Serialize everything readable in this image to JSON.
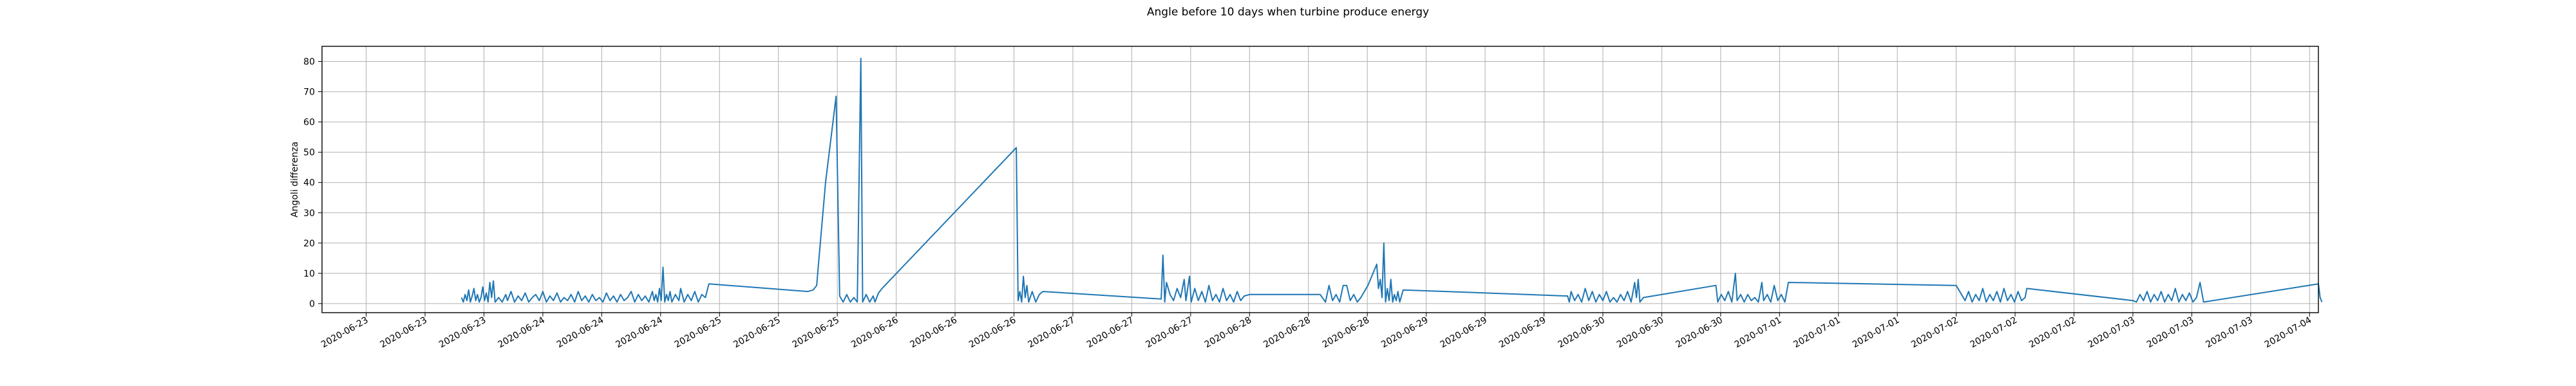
{
  "chart_data": {
    "type": "line",
    "title": "Angle before 10 days when turbine produce energy",
    "xlabel": "",
    "ylabel": "Angoli differenza",
    "ylim": [
      -3,
      85
    ],
    "y_ticks": [
      0,
      10,
      20,
      30,
      40,
      50,
      60,
      70,
      80
    ],
    "grid": true,
    "line_color": "#1f77b4",
    "x_tick_labels": [
      "2020-06-23",
      "2020-06-23",
      "2020-06-23",
      "2020-06-24",
      "2020-06-24",
      "2020-06-24",
      "2020-06-25",
      "2020-06-25",
      "2020-06-25",
      "2020-06-26",
      "2020-06-26",
      "2020-06-26",
      "2020-06-27",
      "2020-06-27",
      "2020-06-27",
      "2020-06-28",
      "2020-06-28",
      "2020-06-28",
      "2020-06-29",
      "2020-06-29",
      "2020-06-29",
      "2020-06-30",
      "2020-06-30",
      "2020-06-30",
      "2020-07-01",
      "2020-07-01",
      "2020-07-01",
      "2020-07-02",
      "2020-07-02",
      "2020-07-02",
      "2020-07-03",
      "2020-07-03",
      "2020-07-03",
      "2020-07-04"
    ],
    "x_tick_positions_days": [
      0,
      0.3333,
      0.6667,
      1,
      1.3333,
      1.6667,
      2,
      2.3333,
      2.6667,
      3,
      3.3333,
      3.6667,
      4,
      4.3333,
      4.6667,
      5,
      5.3333,
      5.6667,
      6,
      6.3333,
      6.6667,
      7,
      7.3333,
      7.6667,
      8,
      8.3333,
      8.6667,
      9,
      9.3333,
      9.6667,
      10,
      10.3333,
      10.6667,
      11
    ],
    "series": [
      {
        "name": "",
        "points": [
          [
            0.54,
            2
          ],
          [
            0.55,
            0.5
          ],
          [
            0.56,
            3
          ],
          [
            0.57,
            1
          ],
          [
            0.58,
            4.5
          ],
          [
            0.59,
            0.5
          ],
          [
            0.6,
            2.5
          ],
          [
            0.61,
            5
          ],
          [
            0.62,
            1
          ],
          [
            0.63,
            3
          ],
          [
            0.64,
            0.5
          ],
          [
            0.65,
            2
          ],
          [
            0.66,
            5.5
          ],
          [
            0.67,
            1
          ],
          [
            0.68,
            3.5
          ],
          [
            0.69,
            0.5
          ],
          [
            0.7,
            7
          ],
          [
            0.71,
            2
          ],
          [
            0.72,
            7.5
          ],
          [
            0.73,
            0.5
          ],
          [
            0.75,
            2
          ],
          [
            0.77,
            0.5
          ],
          [
            0.79,
            3
          ],
          [
            0.8,
            1
          ],
          [
            0.82,
            4
          ],
          [
            0.84,
            0.5
          ],
          [
            0.86,
            2.5
          ],
          [
            0.88,
            1
          ],
          [
            0.9,
            3.5
          ],
          [
            0.92,
            0.5
          ],
          [
            0.94,
            2
          ],
          [
            0.96,
            3
          ],
          [
            0.98,
            1
          ],
          [
            1.0,
            4
          ],
          [
            1.02,
            0.5
          ],
          [
            1.04,
            2.5
          ],
          [
            1.06,
            1
          ],
          [
            1.08,
            3.5
          ],
          [
            1.1,
            0.5
          ],
          [
            1.12,
            2
          ],
          [
            1.14,
            1
          ],
          [
            1.16,
            3
          ],
          [
            1.18,
            0.5
          ],
          [
            1.2,
            4
          ],
          [
            1.22,
            1
          ],
          [
            1.24,
            2.5
          ],
          [
            1.26,
            0.5
          ],
          [
            1.28,
            3
          ],
          [
            1.3,
            1
          ],
          [
            1.32,
            2
          ],
          [
            1.34,
            0.5
          ],
          [
            1.36,
            3.5
          ],
          [
            1.38,
            1
          ],
          [
            1.4,
            2.5
          ],
          [
            1.42,
            0.5
          ],
          [
            1.44,
            3
          ],
          [
            1.46,
            1
          ],
          [
            1.48,
            2
          ],
          [
            1.5,
            4
          ],
          [
            1.52,
            0.5
          ],
          [
            1.54,
            3
          ],
          [
            1.56,
            1
          ],
          [
            1.58,
            2.5
          ],
          [
            1.6,
            0.5
          ],
          [
            1.62,
            4
          ],
          [
            1.63,
            1
          ],
          [
            1.64,
            3
          ],
          [
            1.65,
            0.5
          ],
          [
            1.66,
            5
          ],
          [
            1.67,
            1
          ],
          [
            1.68,
            12
          ],
          [
            1.69,
            0.5
          ],
          [
            1.7,
            3
          ],
          [
            1.71,
            1
          ],
          [
            1.72,
            4
          ],
          [
            1.73,
            0.5
          ],
          [
            1.75,
            3
          ],
          [
            1.77,
            1
          ],
          [
            1.78,
            5
          ],
          [
            1.8,
            0.5
          ],
          [
            1.82,
            3
          ],
          [
            1.84,
            1
          ],
          [
            1.86,
            4
          ],
          [
            1.88,
            0.5
          ],
          [
            1.9,
            3
          ],
          [
            1.92,
            2
          ],
          [
            1.94,
            6.5
          ],
          [
            2.5,
            4
          ],
          [
            2.53,
            4.5
          ],
          [
            2.55,
            6
          ],
          [
            2.6,
            40
          ],
          [
            2.66,
            68.5
          ],
          [
            2.68,
            2.5
          ],
          [
            2.7,
            0.5
          ],
          [
            2.72,
            3
          ],
          [
            2.74,
            0.5
          ],
          [
            2.76,
            2
          ],
          [
            2.78,
            0.5
          ],
          [
            2.8,
            81
          ],
          [
            2.81,
            0.5
          ],
          [
            2.83,
            3
          ],
          [
            2.85,
            0.5
          ],
          [
            2.87,
            2.5
          ],
          [
            2.88,
            0.5
          ],
          [
            2.9,
            3.5
          ],
          [
            2.92,
            5
          ],
          [
            3.68,
            51.5
          ],
          [
            3.69,
            1
          ],
          [
            3.7,
            4
          ],
          [
            3.71,
            0.5
          ],
          [
            3.72,
            9
          ],
          [
            3.73,
            2
          ],
          [
            3.74,
            6
          ],
          [
            3.75,
            0.5
          ],
          [
            3.77,
            4
          ],
          [
            3.79,
            0.5
          ],
          [
            3.81,
            3
          ],
          [
            3.83,
            4
          ],
          [
            4.5,
            1.5
          ],
          [
            4.51,
            16
          ],
          [
            4.52,
            0.5
          ],
          [
            4.53,
            7
          ],
          [
            4.55,
            3
          ],
          [
            4.57,
            1
          ],
          [
            4.59,
            5
          ],
          [
            4.61,
            2
          ],
          [
            4.63,
            8
          ],
          [
            4.64,
            1
          ],
          [
            4.66,
            9
          ],
          [
            4.67,
            0.5
          ],
          [
            4.69,
            5
          ],
          [
            4.71,
            1
          ],
          [
            4.73,
            4
          ],
          [
            4.75,
            0.5
          ],
          [
            4.77,
            6
          ],
          [
            4.79,
            1
          ],
          [
            4.81,
            3
          ],
          [
            4.83,
            0.5
          ],
          [
            4.85,
            5
          ],
          [
            4.87,
            1
          ],
          [
            4.89,
            3
          ],
          [
            4.91,
            0.5
          ],
          [
            4.93,
            4
          ],
          [
            4.95,
            1
          ],
          [
            4.97,
            2.5
          ],
          [
            5.0,
            3
          ],
          [
            5.4,
            3
          ],
          [
            5.43,
            0.5
          ],
          [
            5.45,
            6
          ],
          [
            5.47,
            1
          ],
          [
            5.49,
            3
          ],
          [
            5.51,
            0.5
          ],
          [
            5.53,
            6
          ],
          [
            5.55,
            6
          ],
          [
            5.57,
            1
          ],
          [
            5.59,
            3
          ],
          [
            5.61,
            0.5
          ],
          [
            5.63,
            2
          ],
          [
            5.65,
            4
          ],
          [
            5.67,
            6
          ],
          [
            5.72,
            13
          ],
          [
            5.73,
            5
          ],
          [
            5.74,
            8
          ],
          [
            5.75,
            2
          ],
          [
            5.76,
            20
          ],
          [
            5.77,
            0.5
          ],
          [
            5.78,
            5
          ],
          [
            5.79,
            1
          ],
          [
            5.8,
            8
          ],
          [
            5.81,
            0.5
          ],
          [
            5.82,
            3
          ],
          [
            5.83,
            1
          ],
          [
            5.84,
            4
          ],
          [
            5.85,
            0.5
          ],
          [
            5.87,
            4.5
          ],
          [
            6.8,
            2.5
          ],
          [
            6.81,
            0.5
          ],
          [
            6.82,
            4
          ],
          [
            6.84,
            1
          ],
          [
            6.86,
            3
          ],
          [
            6.88,
            0.5
          ],
          [
            6.9,
            5
          ],
          [
            6.92,
            1
          ],
          [
            6.94,
            4
          ],
          [
            6.96,
            0.5
          ],
          [
            6.98,
            3
          ],
          [
            7.0,
            1
          ],
          [
            7.02,
            4
          ],
          [
            7.04,
            0.5
          ],
          [
            7.06,
            2
          ],
          [
            7.08,
            0.5
          ],
          [
            7.1,
            3
          ],
          [
            7.12,
            1
          ],
          [
            7.14,
            4
          ],
          [
            7.16,
            0.5
          ],
          [
            7.18,
            7
          ],
          [
            7.19,
            2
          ],
          [
            7.2,
            8
          ],
          [
            7.21,
            0.5
          ],
          [
            7.23,
            2
          ],
          [
            7.64,
            6
          ],
          [
            7.65,
            0.5
          ],
          [
            7.67,
            3
          ],
          [
            7.69,
            1
          ],
          [
            7.71,
            4
          ],
          [
            7.73,
            0.5
          ],
          [
            7.75,
            10
          ],
          [
            7.76,
            1
          ],
          [
            7.78,
            3
          ],
          [
            7.8,
            0.5
          ],
          [
            7.82,
            3
          ],
          [
            7.84,
            1
          ],
          [
            7.86,
            2
          ],
          [
            7.88,
            0.5
          ],
          [
            7.9,
            7
          ],
          [
            7.91,
            1
          ],
          [
            7.93,
            3
          ],
          [
            7.95,
            0.5
          ],
          [
            7.97,
            6
          ],
          [
            7.99,
            1
          ],
          [
            8.01,
            3
          ],
          [
            8.03,
            0.5
          ],
          [
            8.05,
            7
          ],
          [
            9.0,
            6
          ],
          [
            9.05,
            1
          ],
          [
            9.07,
            4
          ],
          [
            9.09,
            0.5
          ],
          [
            9.11,
            3
          ],
          [
            9.13,
            1
          ],
          [
            9.15,
            5
          ],
          [
            9.17,
            0.5
          ],
          [
            9.19,
            3
          ],
          [
            9.21,
            1
          ],
          [
            9.23,
            4
          ],
          [
            9.25,
            0.5
          ],
          [
            9.27,
            5
          ],
          [
            9.29,
            1
          ],
          [
            9.31,
            3
          ],
          [
            9.33,
            0.5
          ],
          [
            9.35,
            4
          ],
          [
            9.37,
            1
          ],
          [
            9.39,
            2
          ],
          [
            9.4,
            5
          ],
          [
            10.0,
            1
          ],
          [
            10.02,
            0.5
          ],
          [
            10.04,
            3
          ],
          [
            10.06,
            1
          ],
          [
            10.08,
            4
          ],
          [
            10.1,
            0.5
          ],
          [
            10.12,
            3
          ],
          [
            10.14,
            1
          ],
          [
            10.16,
            4
          ],
          [
            10.18,
            0.5
          ],
          [
            10.2,
            3
          ],
          [
            10.22,
            1
          ],
          [
            10.24,
            5
          ],
          [
            10.26,
            0.5
          ],
          [
            10.28,
            3
          ],
          [
            10.3,
            1
          ],
          [
            10.32,
            3.5
          ],
          [
            10.34,
            0.5
          ],
          [
            10.36,
            2
          ],
          [
            10.38,
            7
          ],
          [
            10.4,
            0.5
          ],
          [
            11.05,
            6.5
          ],
          [
            11.06,
            2
          ],
          [
            11.07,
            0.5
          ]
        ]
      }
    ]
  }
}
